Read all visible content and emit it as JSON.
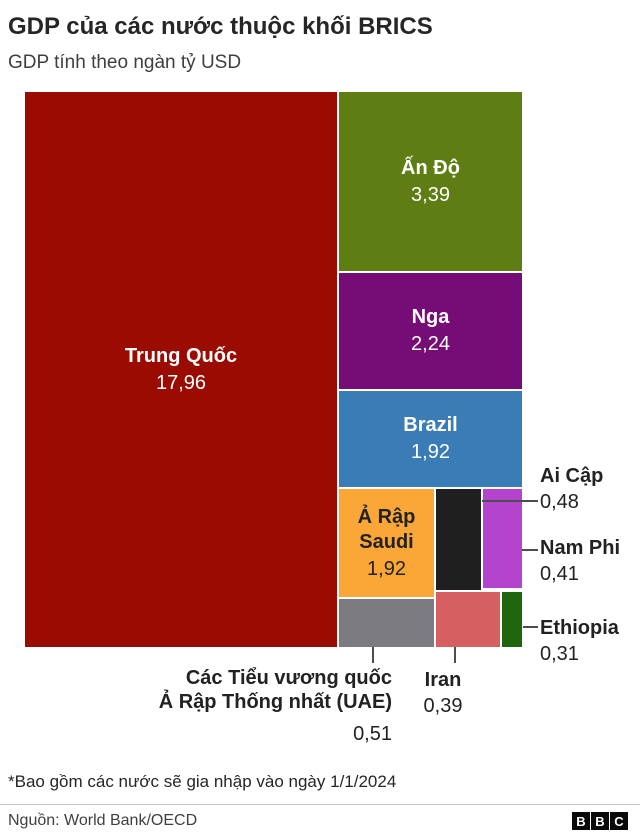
{
  "header": {
    "title": "GDP của các nước thuộc khối BRICS",
    "subtitle": "GDP tính theo ngàn tỷ USD"
  },
  "chart_data": {
    "type": "treemap",
    "title": "GDP của các nước thuộc khối BRICS",
    "unit_label": "GDP tính theo ngàn tỷ USD",
    "total": 29.53,
    "items": [
      {
        "name": "Trung Quốc",
        "value": 17.96,
        "value_label": "17,96",
        "color": "#9a0b01",
        "label_placement": "inside"
      },
      {
        "name": "Ấn Độ",
        "value": 3.39,
        "value_label": "3,39",
        "color": "#5e7e13",
        "label_placement": "inside"
      },
      {
        "name": "Nga",
        "value": 2.24,
        "value_label": "2,24",
        "color": "#760d77",
        "label_placement": "inside"
      },
      {
        "name": "Brazil",
        "value": 1.92,
        "value_label": "1,92",
        "color": "#3a7cb5",
        "label_placement": "inside"
      },
      {
        "name": "Ả Rập Saudi",
        "value": 1.92,
        "value_label": "1,92",
        "color": "#faa737",
        "label_placement": "inside"
      },
      {
        "name": "Các Tiểu vương quốc Ả Rập Thống nhất (UAE)",
        "name_lines": [
          "Các Tiểu vương quốc",
          "Ả Rập Thống nhất (UAE)"
        ],
        "value": 0.51,
        "value_label": "0,51",
        "color": "#7b7b80",
        "label_placement": "below"
      },
      {
        "name": "Ai Cập",
        "value": 0.48,
        "value_label": "0,48",
        "color": "#1f1f1f",
        "label_placement": "right"
      },
      {
        "name": "Nam Phi",
        "value": 0.41,
        "value_label": "0,41",
        "color": "#b444ce",
        "label_placement": "right"
      },
      {
        "name": "Iran",
        "value": 0.39,
        "value_label": "0,39",
        "color": "#d55f61",
        "label_placement": "below"
      },
      {
        "name": "Ethiopia",
        "value": 0.31,
        "value_label": "0,31",
        "color": "#1e650e",
        "label_placement": "right"
      }
    ]
  },
  "footer": {
    "footnote": "*Bao gồm các nước sẽ gia nhập vào ngày 1/1/2024",
    "source": "Nguồn: World Bank/OECD",
    "logo_letters": [
      "B",
      "B",
      "C"
    ]
  }
}
